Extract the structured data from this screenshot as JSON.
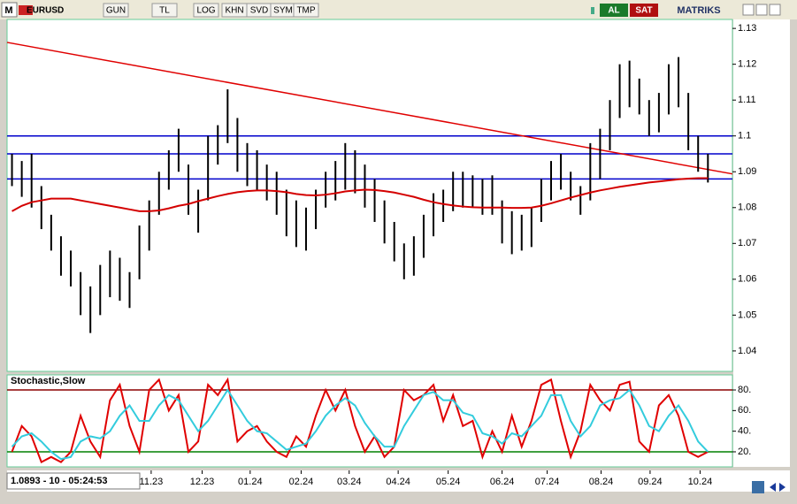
{
  "toolbar": {
    "logo": "M",
    "symbol": "EURUSD",
    "buttons": [
      "GUN",
      "TL",
      "LOG",
      "KHN",
      "SVD",
      "SYM",
      "TMP"
    ],
    "buy": "AL",
    "sell": "SAT",
    "brand": "MATRIKS"
  },
  "status": "1.0893 - 10 - 05:24:53",
  "chart_data": [
    {
      "type": "range-bar",
      "color": "#000000",
      "high": [
        1.095,
        1.093,
        1.095,
        1.086,
        1.078,
        1.072,
        1.068,
        1.062,
        1.058,
        1.064,
        1.068,
        1.066,
        1.062,
        1.075,
        1.082,
        1.09,
        1.096,
        1.102,
        1.092,
        1.085,
        1.1,
        1.103,
        1.113,
        1.105,
        1.098,
        1.096,
        1.092,
        1.09,
        1.085,
        1.082,
        1.08,
        1.085,
        1.09,
        1.093,
        1.098,
        1.096,
        1.092,
        1.088,
        1.082,
        1.076,
        1.07,
        1.072,
        1.078,
        1.084,
        1.085,
        1.09,
        1.09,
        1.089,
        1.088,
        1.089,
        1.082,
        1.079,
        1.078,
        1.08,
        1.088,
        1.093,
        1.095,
        1.09,
        1.086,
        1.098,
        1.102,
        1.11,
        1.12,
        1.121,
        1.116,
        1.11,
        1.112,
        1.12,
        1.122,
        1.112,
        1.1,
        1.095
      ],
      "low": [
        1.086,
        1.083,
        1.08,
        1.074,
        1.068,
        1.061,
        1.058,
        1.05,
        1.045,
        1.05,
        1.055,
        1.054,
        1.052,
        1.06,
        1.068,
        1.078,
        1.085,
        1.09,
        1.078,
        1.073,
        1.082,
        1.092,
        1.098,
        1.09,
        1.086,
        1.085,
        1.082,
        1.078,
        1.072,
        1.069,
        1.068,
        1.074,
        1.08,
        1.082,
        1.085,
        1.084,
        1.08,
        1.076,
        1.07,
        1.065,
        1.06,
        1.061,
        1.066,
        1.072,
        1.076,
        1.079,
        1.08,
        1.08,
        1.078,
        1.078,
        1.07,
        1.067,
        1.068,
        1.069,
        1.076,
        1.082,
        1.085,
        1.082,
        1.078,
        1.082,
        1.088,
        1.096,
        1.105,
        1.108,
        1.106,
        1.1,
        1.101,
        1.106,
        1.108,
        1.096,
        1.09,
        1.087
      ],
      "ma": {
        "color": "#d40000",
        "values": [
          1.079,
          1.0805,
          1.0815,
          1.082,
          1.0825,
          1.0825,
          1.0825,
          1.082,
          1.0815,
          1.081,
          1.0805,
          1.08,
          1.0795,
          1.079,
          1.079,
          1.0792,
          1.0798,
          1.0805,
          1.081,
          1.0818,
          1.0825,
          1.0832,
          1.0838,
          1.0843,
          1.0846,
          1.0848,
          1.0848,
          1.0846,
          1.0843,
          1.0838,
          1.0835,
          1.0834,
          1.0836,
          1.084,
          1.0845,
          1.0848,
          1.085,
          1.0849,
          1.0846,
          1.0842,
          1.0836,
          1.083,
          1.0822,
          1.0815,
          1.081,
          1.0806,
          1.0803,
          1.0801,
          1.08,
          1.08,
          1.08,
          1.0799,
          1.0799,
          1.08,
          1.0805,
          1.0812,
          1.082,
          1.0828,
          1.0835,
          1.0842,
          1.0848,
          1.0853,
          1.0858,
          1.0862,
          1.0866,
          1.087,
          1.0873,
          1.0876,
          1.0879,
          1.0881,
          1.0882,
          1.0882
        ]
      },
      "trendline": {
        "color": "#e00000",
        "x": [
          -0.5,
          73.5
        ],
        "y": [
          1.1261,
          1.0894
        ]
      },
      "hlines": {
        "color": "#0000cc",
        "values": [
          1.1,
          1.095,
          1.088
        ]
      },
      "xlim": [
        -0.5,
        73.5
      ],
      "xticks": [
        {
          "value": 14.2,
          "label": "11.23"
        },
        {
          "value": 19.4,
          "label": "12.23"
        },
        {
          "value": 24.3,
          "label": "01.24"
        },
        {
          "value": 29.5,
          "label": "02.24"
        },
        {
          "value": 34.4,
          "label": "03.24"
        },
        {
          "value": 39.4,
          "label": "04.24"
        },
        {
          "value": 44.5,
          "label": "05.24"
        },
        {
          "value": 50.0,
          "label": "06.24"
        },
        {
          "value": 54.6,
          "label": "07.24"
        },
        {
          "value": 60.1,
          "label": "08.24"
        },
        {
          "value": 65.1,
          "label": "09.24"
        },
        {
          "value": 70.2,
          "label": "10.24"
        }
      ],
      "ylim": [
        1.0343,
        1.1325
      ],
      "yticks": [
        1.13,
        1.12,
        1.11,
        1.1,
        1.09,
        1.08,
        1.07,
        1.06,
        1.05,
        1.04
      ]
    },
    {
      "type": "line",
      "title": "Stochastic,Slow",
      "series": [
        {
          "color": "#e00000",
          "values": [
            20,
            45,
            35,
            10,
            15,
            10,
            20,
            55,
            30,
            15,
            70,
            85,
            45,
            20,
            80,
            90,
            60,
            75,
            20,
            30,
            85,
            75,
            90,
            30,
            40,
            45,
            30,
            20,
            15,
            35,
            25,
            55,
            80,
            60,
            80,
            45,
            20,
            35,
            15,
            25,
            80,
            70,
            75,
            85,
            50,
            75,
            45,
            50,
            15,
            40,
            20,
            55,
            25,
            50,
            85,
            90,
            50,
            15,
            40,
            85,
            70,
            60,
            85,
            88,
            30,
            20,
            65,
            75,
            55,
            20,
            15,
            20
          ]
        },
        {
          "color": "#33ccdd",
          "values": [
            25,
            35,
            38,
            30,
            20,
            13,
            15,
            30,
            35,
            33,
            40,
            55,
            65,
            50,
            50,
            65,
            75,
            70,
            55,
            40,
            50,
            65,
            80,
            65,
            50,
            40,
            38,
            30,
            22,
            25,
            28,
            40,
            55,
            65,
            72,
            65,
            48,
            35,
            25,
            25,
            45,
            60,
            75,
            78,
            70,
            70,
            58,
            55,
            38,
            35,
            28,
            38,
            35,
            45,
            55,
            75,
            75,
            50,
            35,
            45,
            65,
            70,
            72,
            80,
            65,
            45,
            40,
            55,
            65,
            50,
            30,
            20
          ]
        }
      ],
      "hlines": [
        {
          "value": 80,
          "color": "#8b0000"
        },
        {
          "value": 20,
          "color": "#008000"
        }
      ],
      "xlim": [
        -0.5,
        73.5
      ],
      "ylim": [
        5.4,
        94.6
      ],
      "yticks": [
        {
          "value": 80,
          "label": "80."
        },
        {
          "value": 60,
          "label": "60."
        },
        {
          "value": 40,
          "label": "40."
        },
        {
          "value": 20,
          "label": "20."
        }
      ]
    }
  ]
}
